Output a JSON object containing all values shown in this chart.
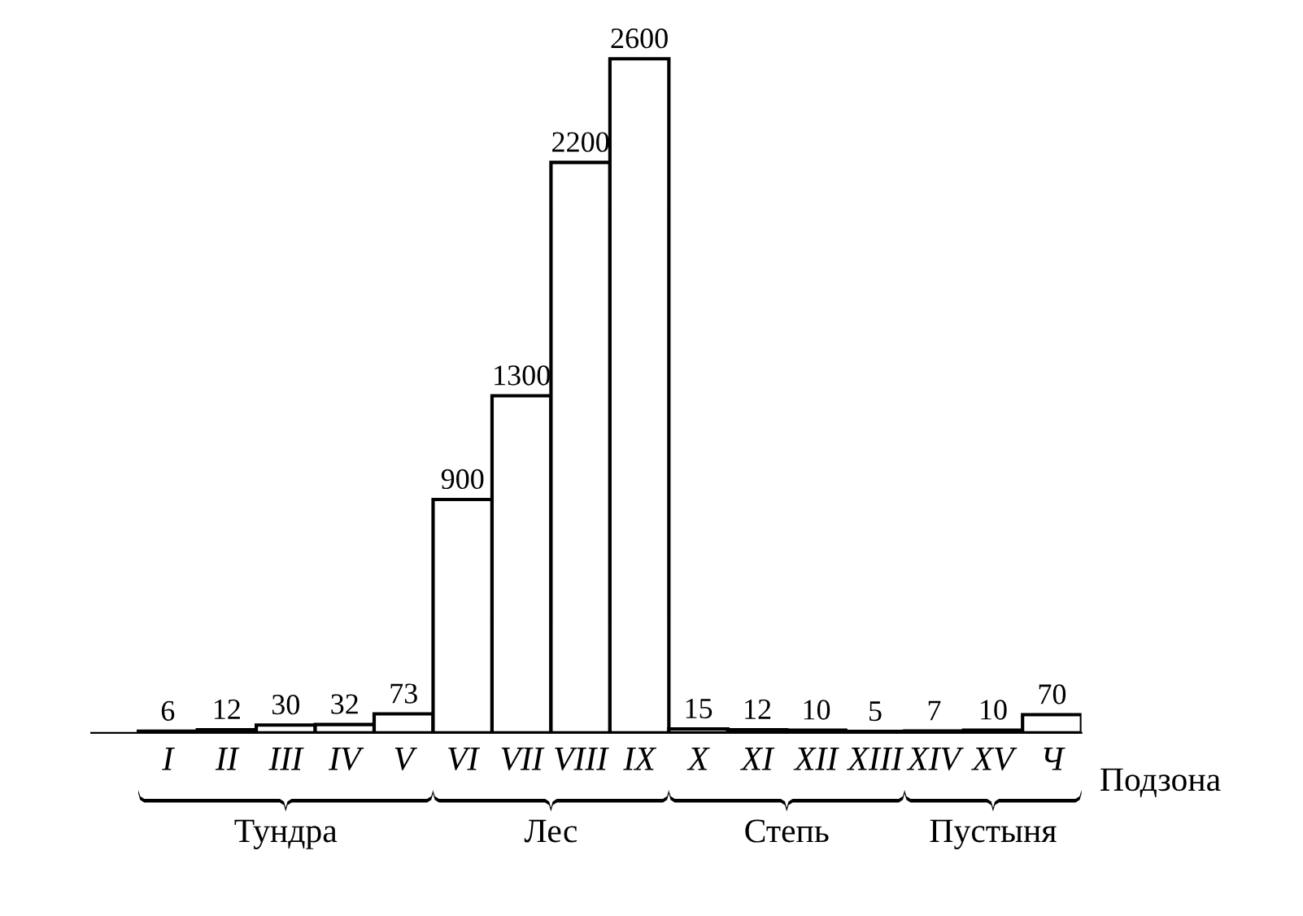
{
  "chart_data": {
    "type": "bar",
    "xlabel": "Подзона",
    "categories": [
      "I",
      "II",
      "III",
      "IV",
      "V",
      "VI",
      "VII",
      "VIII",
      "IX",
      "X",
      "XI",
      "XII",
      "XIII",
      "XIV",
      "XV",
      "Ч"
    ],
    "values": [
      6,
      12,
      30,
      32,
      73,
      900,
      1300,
      2200,
      2600,
      15,
      12,
      10,
      5,
      7,
      10,
      70
    ],
    "color": "#ffffff",
    "data_labels": true,
    "grid": false,
    "tick_labels": "x",
    "annotations": [
      "Тундра",
      "Лес",
      "Степь",
      "Пустыня"
    ]
  }
}
